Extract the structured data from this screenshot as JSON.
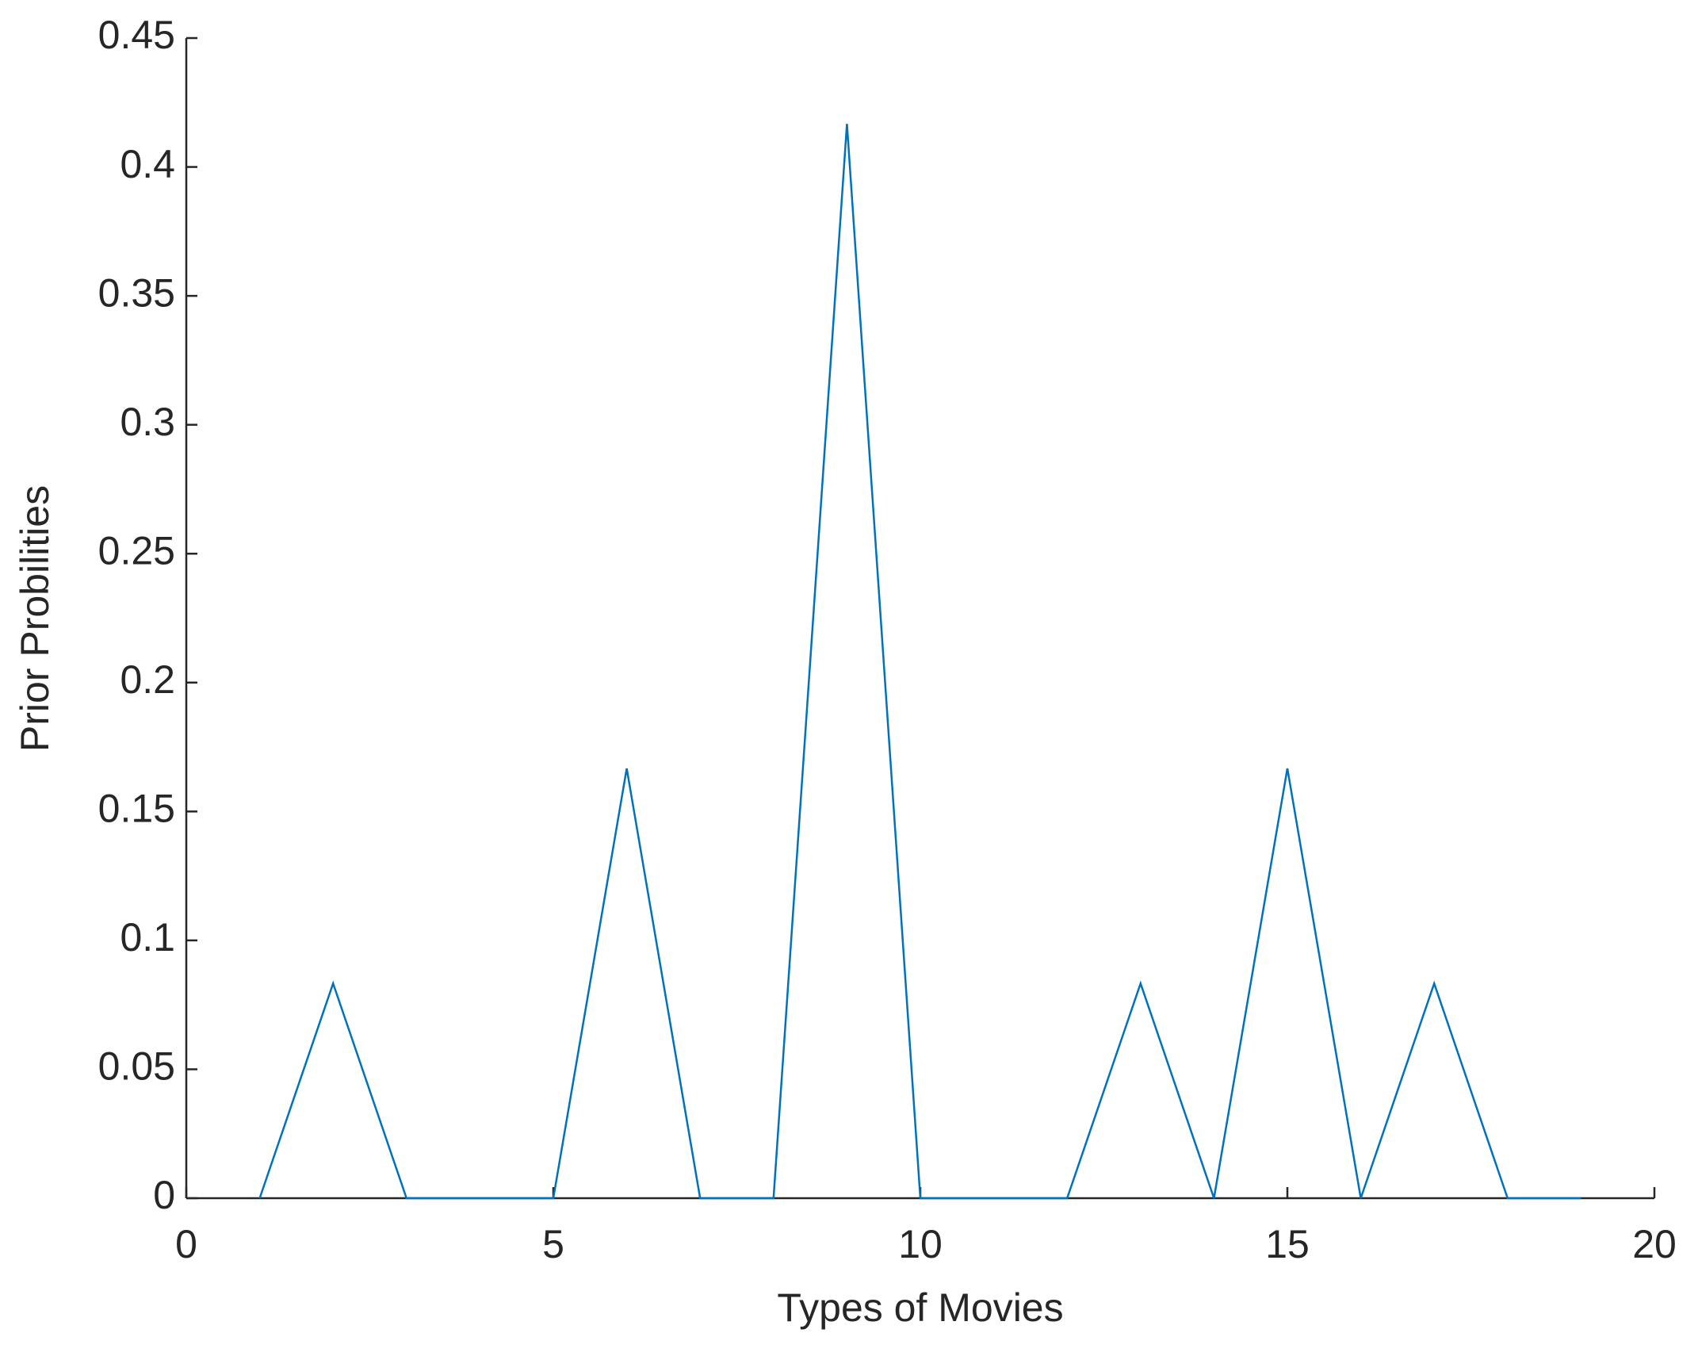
{
  "chart_data": {
    "type": "line",
    "xlabel": "Types of Movies",
    "ylabel": "Prior Probilities",
    "x": [
      1,
      2,
      3,
      4,
      5,
      6,
      7,
      8,
      9,
      10,
      11,
      12,
      13,
      14,
      15,
      16,
      17,
      18,
      19
    ],
    "values": [
      0,
      0.0833,
      0,
      0,
      0,
      0.1667,
      0,
      0,
      0.4167,
      0,
      0,
      0,
      0.0833,
      0,
      0.1667,
      0,
      0.0833,
      0,
      0
    ],
    "color": "#0072bd",
    "xlim": [
      0,
      20
    ],
    "xticks": [
      0,
      5,
      10,
      15,
      20
    ],
    "ylim": [
      0,
      0.45
    ],
    "yticks": [
      0,
      0.05,
      0.1,
      0.15,
      0.2,
      0.25,
      0.3,
      0.35,
      0.4,
      0.45
    ],
    "grid": false
  }
}
